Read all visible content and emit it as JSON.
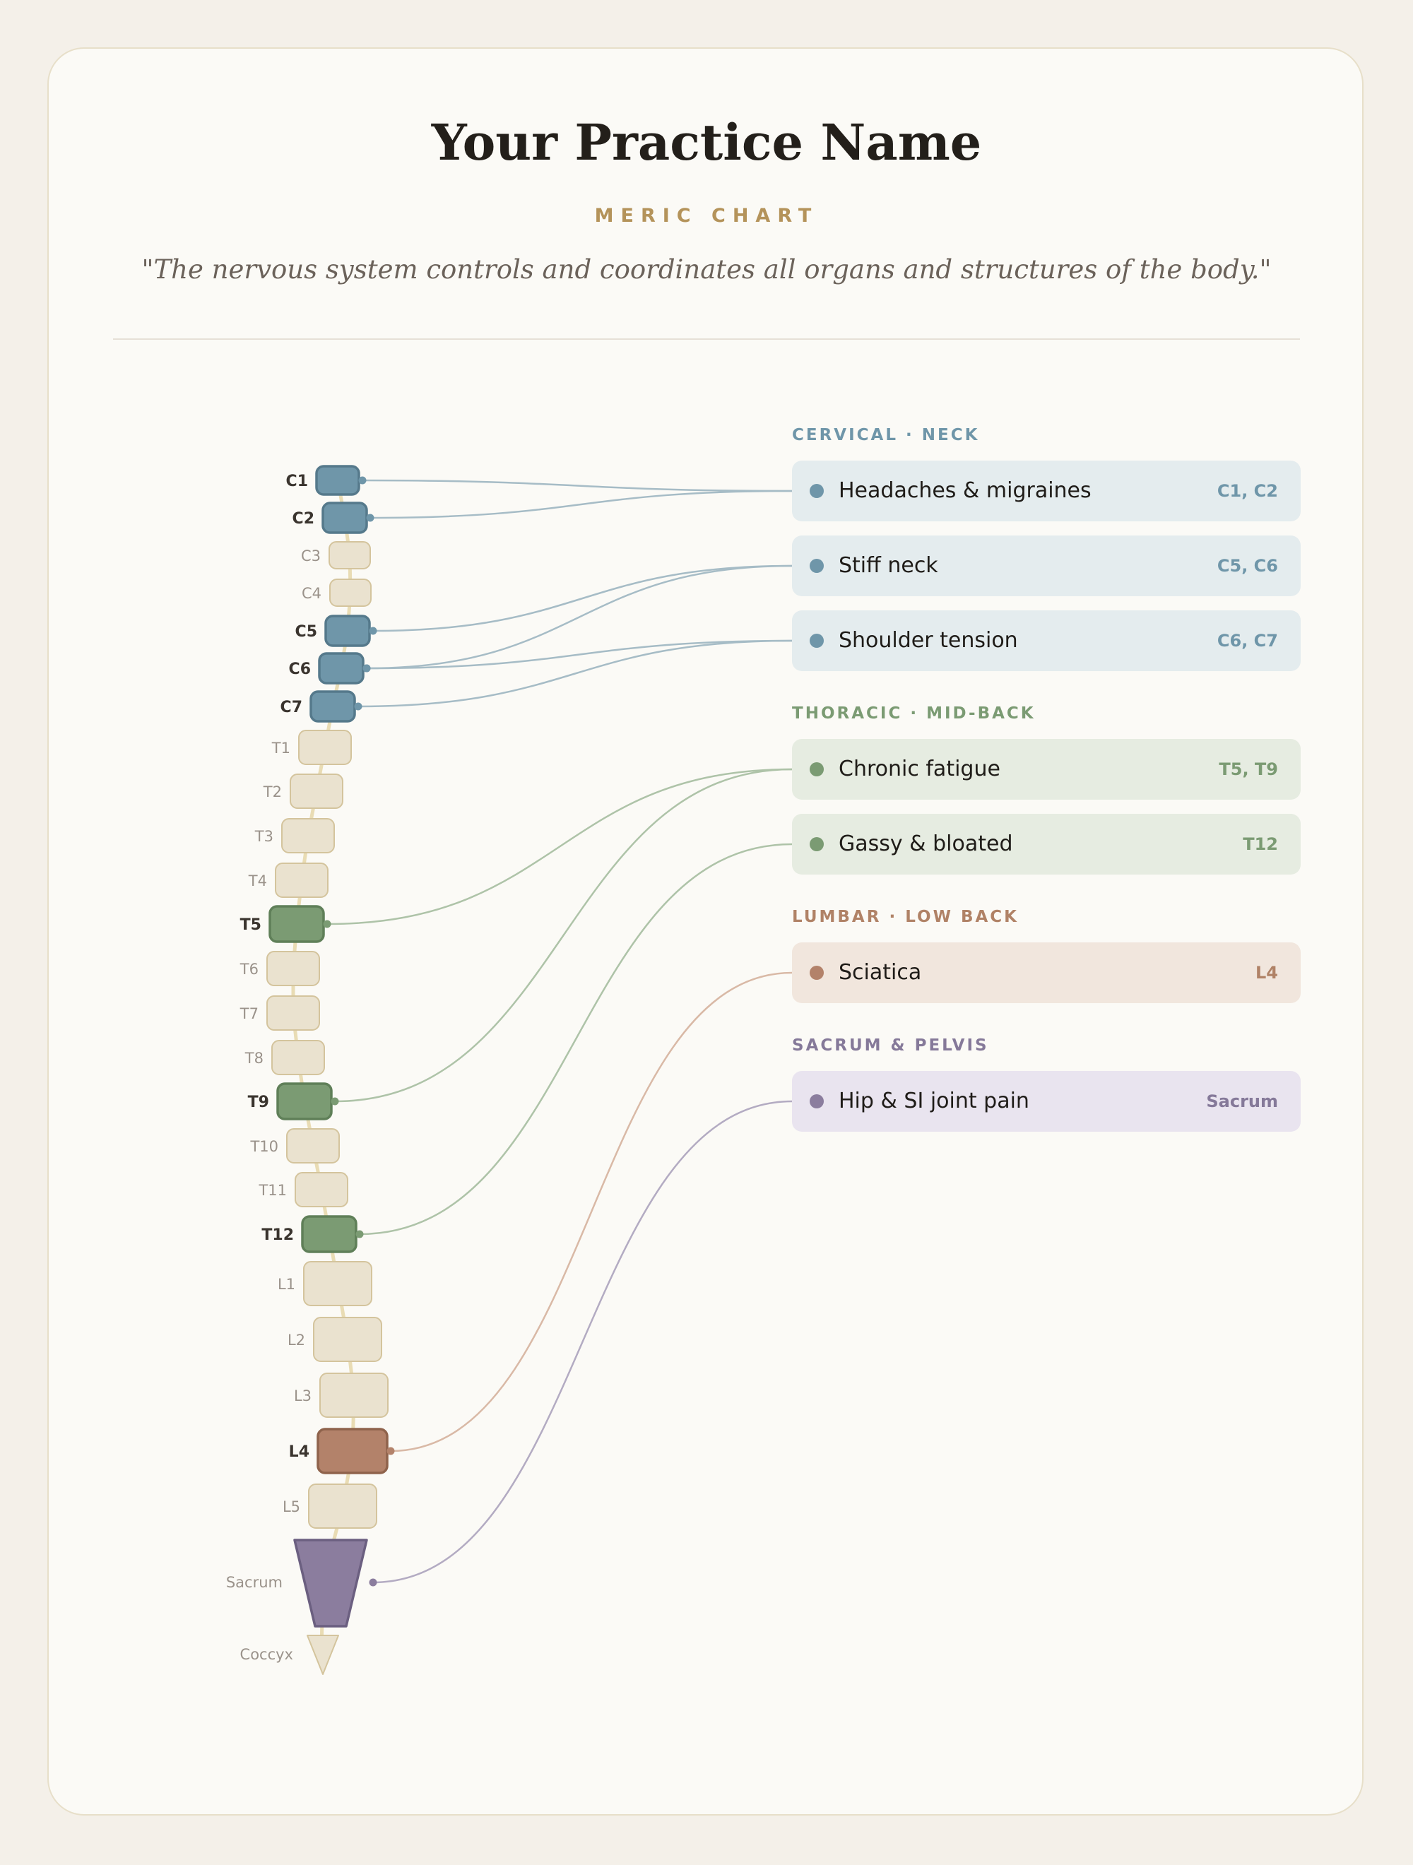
{
  "header": {
    "title": "Your Practice Name",
    "subtitle": "MERIC CHART",
    "quote": "\"The nervous system controls and coordinates all organs and structures of the body.\""
  },
  "colors": {
    "cervical": "#6f96a9",
    "thoracic": "#7b9b73",
    "lumbar": "#b3826a",
    "sacrum": "#8b7d9e",
    "neutral": "#eae2cf"
  },
  "spine": {
    "vertebrae": [
      "C1",
      "C2",
      "C3",
      "C4",
      "C5",
      "C6",
      "C7",
      "T1",
      "T2",
      "T3",
      "T4",
      "T5",
      "T6",
      "T7",
      "T8",
      "T9",
      "T10",
      "T11",
      "T12",
      "L1",
      "L2",
      "L3",
      "L4",
      "L5"
    ],
    "sacrum": "Sacrum",
    "coccyx": "Coccyx",
    "highlighted": {
      "C1": "cervical",
      "C2": "cervical",
      "C5": "cervical",
      "C6": "cervical",
      "C7": "cervical",
      "T5": "thoracic",
      "T9": "thoracic",
      "T12": "thoracic",
      "L4": "lumbar",
      "Sacrum": "sacrum"
    }
  },
  "sections": [
    {
      "label": "CERVICAL · NECK",
      "region": "cervical",
      "conditions": [
        {
          "name": "Headaches & migraines",
          "levels": "C1, C2",
          "links": [
            "C1",
            "C2"
          ]
        },
        {
          "name": "Stiff neck",
          "levels": "C5, C6",
          "links": [
            "C5",
            "C6"
          ]
        },
        {
          "name": "Shoulder tension",
          "levels": "C6, C7",
          "links": [
            "C6",
            "C7"
          ]
        }
      ]
    },
    {
      "label": "THORACIC · MID-BACK",
      "region": "thoracic",
      "conditions": [
        {
          "name": "Chronic fatigue",
          "levels": "T5, T9",
          "links": [
            "T5",
            "T9"
          ]
        },
        {
          "name": "Gassy & bloated",
          "levels": "T12",
          "links": [
            "T12"
          ]
        }
      ]
    },
    {
      "label": "LUMBAR · LOW BACK",
      "region": "lumbar",
      "conditions": [
        {
          "name": "Sciatica",
          "levels": "L4",
          "links": [
            "L4"
          ]
        }
      ]
    },
    {
      "label": "SACRUM & PELVIS",
      "region": "sacrum",
      "conditions": [
        {
          "name": "Hip & SI joint pain",
          "levels": "Sacrum",
          "links": [
            "Sacrum"
          ]
        }
      ]
    }
  ]
}
